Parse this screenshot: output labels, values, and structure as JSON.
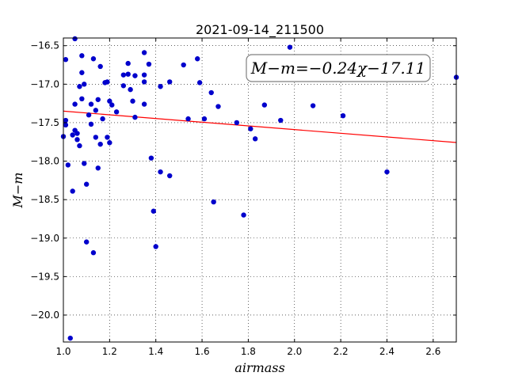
{
  "chart_data": {
    "type": "scatter",
    "title": "2021-09-14_211500",
    "xlabel": "airmass",
    "ylabel": "M−m",
    "xlim": [
      1.0,
      2.7
    ],
    "ylim": [
      -20.35,
      -16.4
    ],
    "y_inverted": true,
    "grid": true,
    "x_ticks": [
      1.0,
      1.2,
      1.4,
      1.6,
      1.8,
      2.0,
      2.2,
      2.4,
      2.6
    ],
    "x_tick_labels": [
      "1.0",
      "1.2",
      "1.4",
      "1.6",
      "1.8",
      "2.0",
      "2.2",
      "2.4",
      "2.6"
    ],
    "y_ticks": [
      -16.5,
      -17.0,
      -17.5,
      -18.0,
      -18.5,
      -19.0,
      -19.5,
      -20.0
    ],
    "y_tick_labels": [
      "−16.5",
      "−17.0",
      "−17.5",
      "−18.0",
      "−18.5",
      "−19.0",
      "−19.5",
      "−20.0"
    ],
    "annotation": "M−m=−0.24χ−17.11",
    "fit": {
      "slope": -0.24,
      "intercept": -17.11,
      "color": "#ff0000"
    },
    "point_color": "#0000cc",
    "points": [
      [
        1.0,
        -17.68
      ],
      [
        1.01,
        -17.53
      ],
      [
        1.01,
        -17.47
      ],
      [
        1.01,
        -16.68
      ],
      [
        1.02,
        -18.05
      ],
      [
        1.03,
        -20.3
      ],
      [
        1.04,
        -17.66
      ],
      [
        1.04,
        -18.39
      ],
      [
        1.05,
        -16.41
      ],
      [
        1.05,
        -17.26
      ],
      [
        1.05,
        -17.6
      ],
      [
        1.06,
        -17.64
      ],
      [
        1.06,
        -17.72
      ],
      [
        1.07,
        -17.03
      ],
      [
        1.07,
        -17.8
      ],
      [
        1.08,
        -16.85
      ],
      [
        1.08,
        -17.19
      ],
      [
        1.08,
        -16.63
      ],
      [
        1.09,
        -17.0
      ],
      [
        1.09,
        -18.03
      ],
      [
        1.1,
        -19.05
      ],
      [
        1.1,
        -18.3
      ],
      [
        1.11,
        -17.4
      ],
      [
        1.12,
        -17.26
      ],
      [
        1.12,
        -17.52
      ],
      [
        1.13,
        -16.67
      ],
      [
        1.13,
        -19.19
      ],
      [
        1.14,
        -17.34
      ],
      [
        1.14,
        -17.69
      ],
      [
        1.15,
        -18.09
      ],
      [
        1.15,
        -17.2
      ],
      [
        1.16,
        -16.77
      ],
      [
        1.16,
        -17.78
      ],
      [
        1.17,
        -17.45
      ],
      [
        1.18,
        -16.98
      ],
      [
        1.19,
        -16.97
      ],
      [
        1.19,
        -17.69
      ],
      [
        1.2,
        -17.22
      ],
      [
        1.2,
        -17.76
      ],
      [
        1.21,
        -17.27
      ],
      [
        1.23,
        -17.36
      ],
      [
        1.26,
        -17.02
      ],
      [
        1.26,
        -16.88
      ],
      [
        1.28,
        -16.73
      ],
      [
        1.28,
        -16.87
      ],
      [
        1.29,
        -17.07
      ],
      [
        1.3,
        -17.22
      ],
      [
        1.31,
        -16.89
      ],
      [
        1.31,
        -17.43
      ],
      [
        1.35,
        -16.59
      ],
      [
        1.35,
        -16.88
      ],
      [
        1.35,
        -16.97
      ],
      [
        1.35,
        -17.26
      ],
      [
        1.37,
        -16.74
      ],
      [
        1.38,
        -17.96
      ],
      [
        1.39,
        -18.65
      ],
      [
        1.4,
        -19.11
      ],
      [
        1.42,
        -17.03
      ],
      [
        1.42,
        -18.14
      ],
      [
        1.46,
        -16.97
      ],
      [
        1.46,
        -18.19
      ],
      [
        1.52,
        -16.75
      ],
      [
        1.54,
        -17.45
      ],
      [
        1.58,
        -16.67
      ],
      [
        1.59,
        -16.98
      ],
      [
        1.61,
        -17.45
      ],
      [
        1.64,
        -17.11
      ],
      [
        1.65,
        -18.53
      ],
      [
        1.67,
        -17.29
      ],
      [
        1.75,
        -17.5
      ],
      [
        1.78,
        -18.7
      ],
      [
        1.81,
        -17.58
      ],
      [
        1.83,
        -17.71
      ],
      [
        1.87,
        -17.27
      ],
      [
        1.94,
        -17.47
      ],
      [
        1.98,
        -16.52
      ],
      [
        2.08,
        -17.28
      ],
      [
        2.21,
        -17.41
      ],
      [
        2.4,
        -18.14
      ],
      [
        2.7,
        -16.91
      ]
    ]
  }
}
